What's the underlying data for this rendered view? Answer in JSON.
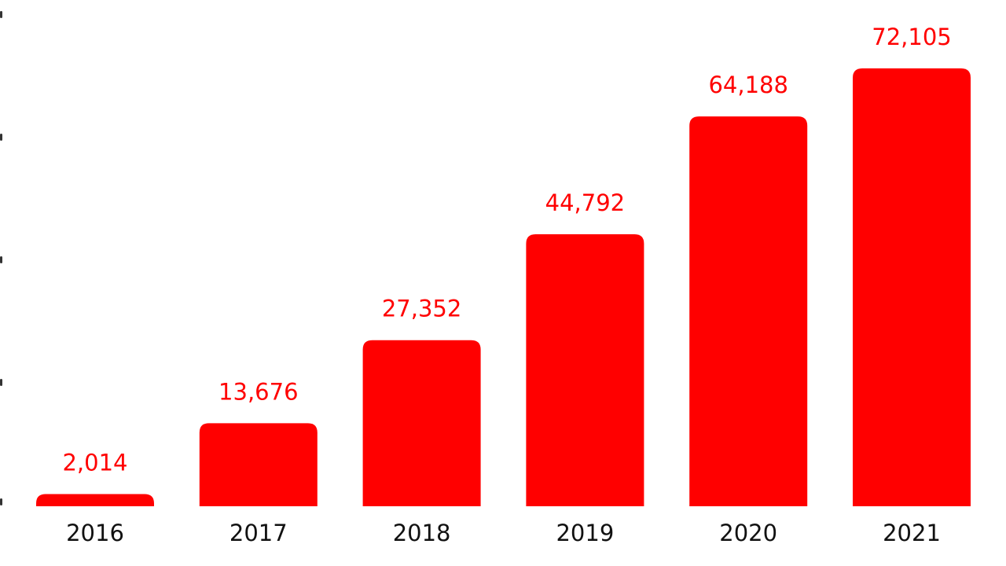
{
  "colors": {
    "bar": "#ff0000",
    "value_label": "#ff0000",
    "category_label": "#111111",
    "background": "#ffffff"
  },
  "chart_data": {
    "type": "bar",
    "title": "",
    "xlabel": "",
    "ylabel": "",
    "categories": [
      "2016",
      "2017",
      "2018",
      "2019",
      "2020",
      "2021"
    ],
    "values": [
      2014,
      13676,
      27352,
      44792,
      64188,
      72105
    ],
    "value_labels": [
      "2,014",
      "13,676",
      "27,352",
      "44,792",
      "64,188",
      "72,105"
    ],
    "ylim": [
      0,
      80000
    ],
    "grid": false,
    "legend": "none",
    "data_labels": "above-bars"
  }
}
